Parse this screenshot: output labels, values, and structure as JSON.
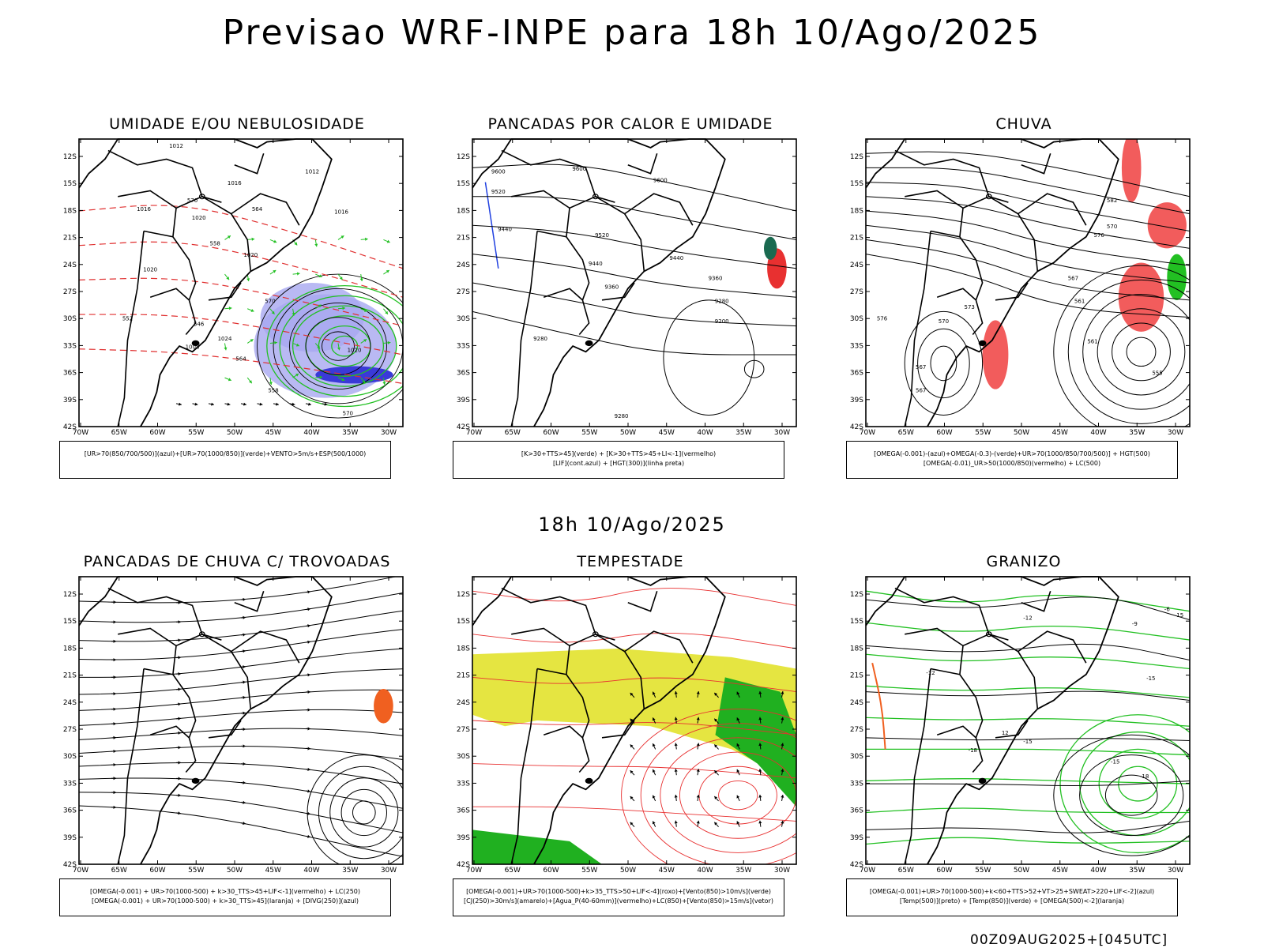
{
  "title": "Previsao WRF-INPE  para 18h 10/Ago/2025",
  "subtitle": "18h 10/Ago/2025",
  "footer": "00Z09AUG2025+[045UTC]",
  "axes": {
    "lat_labels": [
      "12S",
      "15S",
      "18S",
      "21S",
      "24S",
      "27S",
      "30S",
      "33S",
      "36S",
      "39S",
      "42S"
    ],
    "lon_labels": [
      "70W",
      "65W",
      "60W",
      "55W",
      "50W",
      "45W",
      "40W",
      "35W",
      "30W"
    ]
  },
  "panels": [
    {
      "title": "UMIDADE E/OU NEBULOSIDADE",
      "legend": [
        "[UR>70(850/700/500)](azul)+[UR>70(1000/850)](verde)+VENTO>5m/s+ESP(500/1000)"
      ],
      "contour_labels": [
        "1012",
        "1012",
        "1016",
        "1016",
        "1016",
        "1020",
        "1020",
        "1020",
        "1024",
        "1008",
        "1020",
        "570",
        "570",
        "564",
        "558",
        "552",
        "546",
        "570",
        "564",
        "558"
      ]
    },
    {
      "title": "PANCADAS POR CALOR E UMIDADE",
      "legend": [
        "[K>30+TTS>45](verde) + [K>30+TTS>45+LI<-1](vermelho)",
        "[LIF](cont.azul) + [HGT(300)](linha preta)"
      ],
      "contour_labels": [
        "9600",
        "9600",
        "9600",
        "9520",
        "9520",
        "9440",
        "9440",
        "9440",
        "9360",
        "9360",
        "9280",
        "9280",
        "9200",
        "9280"
      ]
    },
    {
      "title": "CHUVA",
      "legend": [
        "[OMEGA(-0.001)-(azul)+OMEGA(-0.3)-(verde)+UR>70(1000/850/700/500)] + HGT(500)",
        "[OMEGA(-0.01)_UR>50(1000/850)(vermelho) + LC(500)"
      ],
      "contour_labels": [
        "582",
        "576",
        "570",
        "567",
        "561",
        "576",
        "573",
        "570",
        "567",
        "567",
        "561",
        "555"
      ]
    },
    {
      "title": "PANCADAS DE CHUVA C/ TROVOADAS",
      "legend": [
        "[OMEGA(-0.001) + UR>70(1000-500) + k>30_TTS>45+LIF<-1](vermelho) + LC(250)",
        "[OMEGA(-0.001) + UR>70(1000-500) + k>30_TTS>45](laranja) + [DIVG(250)](azul)"
      ],
      "contour_labels": []
    },
    {
      "title": "TEMPESTADE",
      "legend": [
        "[OMEGA(-0.001)+UR>70(1000-500)+k>35_TTS>50+LIF<-4](roxo)+[Vento(850)>10m/s](verde)",
        "[CJ(250)>30m/s](amarelo)+[Agua_P(40-60mm)](vermelho)+LC(850)+[Vento(850)>15m/s](vetor)"
      ],
      "contour_labels": []
    },
    {
      "title": "GRANIZO",
      "legend": [
        "[OMEGA(-0.001)+UR>70(1000-500)+k<60+TTS>52+VT>25+SWEAT>220+LIF<-2](azul)",
        "[Temp(500)](preto) + [Temp(850)](verde) + [OMEGA(500)<-2](laranja)"
      ],
      "contour_labels": [
        "-12",
        "-12",
        "-15",
        "-15",
        "-18",
        "-18",
        "-15",
        "-9",
        "-6",
        "15",
        "12"
      ]
    }
  ]
}
